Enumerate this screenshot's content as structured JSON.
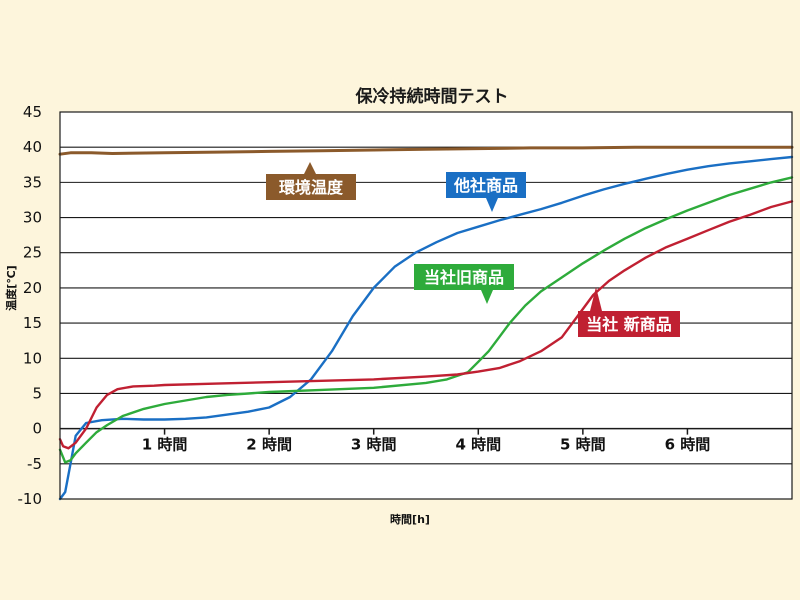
{
  "chart_data": {
    "type": "line",
    "title": "保冷持続時間テスト",
    "xlabel": "時間[h]",
    "ylabel": "温度[℃]",
    "xlim": [
      0,
      7
    ],
    "ylim": [
      -10,
      45
    ],
    "yticks": [
      45,
      40,
      35,
      30,
      25,
      20,
      15,
      10,
      5,
      0,
      -5,
      -10
    ],
    "xticks": [
      {
        "value": 1,
        "label": "1 時間"
      },
      {
        "value": 2,
        "label": "2 時間"
      },
      {
        "value": 3,
        "label": "3 時間"
      },
      {
        "value": 4,
        "label": "4 時間"
      },
      {
        "value": 5,
        "label": "5 時間"
      },
      {
        "value": 6,
        "label": "6 時間"
      }
    ],
    "grid": true,
    "series": [
      {
        "name": "環境温度",
        "color": "#8b5a2b",
        "points": [
          [
            0,
            39
          ],
          [
            0.1,
            39.2
          ],
          [
            0.3,
            39.2
          ],
          [
            0.5,
            39.1
          ],
          [
            1,
            39.2
          ],
          [
            1.5,
            39.3
          ],
          [
            2,
            39.4
          ],
          [
            2.5,
            39.5
          ],
          [
            3,
            39.6
          ],
          [
            3.5,
            39.7
          ],
          [
            4,
            39.8
          ],
          [
            4.5,
            39.9
          ],
          [
            5,
            39.9
          ],
          [
            5.5,
            40
          ],
          [
            6,
            40
          ],
          [
            6.5,
            40
          ],
          [
            7,
            40
          ]
        ]
      },
      {
        "name": "他社商品",
        "color": "#1a6fc4",
        "points": [
          [
            0,
            -10
          ],
          [
            0.05,
            -9
          ],
          [
            0.1,
            -5
          ],
          [
            0.15,
            -1
          ],
          [
            0.25,
            0.8
          ],
          [
            0.4,
            1.2
          ],
          [
            0.6,
            1.4
          ],
          [
            0.8,
            1.3
          ],
          [
            1,
            1.3
          ],
          [
            1.2,
            1.4
          ],
          [
            1.4,
            1.6
          ],
          [
            1.6,
            2
          ],
          [
            1.8,
            2.4
          ],
          [
            2,
            3
          ],
          [
            2.2,
            4.5
          ],
          [
            2.4,
            7
          ],
          [
            2.6,
            11
          ],
          [
            2.8,
            16
          ],
          [
            3,
            20
          ],
          [
            3.2,
            23
          ],
          [
            3.4,
            25
          ],
          [
            3.6,
            26.5
          ],
          [
            3.8,
            27.8
          ],
          [
            4,
            28.7
          ],
          [
            4.2,
            29.6
          ],
          [
            4.4,
            30.4
          ],
          [
            4.6,
            31.2
          ],
          [
            4.8,
            32.1
          ],
          [
            5,
            33.1
          ],
          [
            5.2,
            34
          ],
          [
            5.4,
            34.8
          ],
          [
            5.6,
            35.5
          ],
          [
            5.8,
            36.2
          ],
          [
            6,
            36.8
          ],
          [
            6.2,
            37.3
          ],
          [
            6.4,
            37.7
          ],
          [
            6.6,
            38
          ],
          [
            6.8,
            38.3
          ],
          [
            7,
            38.6
          ]
        ]
      },
      {
        "name": "当社旧商品",
        "color": "#2eab3b",
        "points": [
          [
            0,
            -3
          ],
          [
            0.05,
            -4.8
          ],
          [
            0.1,
            -4.5
          ],
          [
            0.15,
            -3.5
          ],
          [
            0.25,
            -2
          ],
          [
            0.35,
            -0.5
          ],
          [
            0.45,
            0.5
          ],
          [
            0.6,
            1.8
          ],
          [
            0.8,
            2.8
          ],
          [
            1,
            3.5
          ],
          [
            1.2,
            4
          ],
          [
            1.4,
            4.5
          ],
          [
            1.6,
            4.8
          ],
          [
            1.8,
            5
          ],
          [
            2,
            5.2
          ],
          [
            2.5,
            5.5
          ],
          [
            3,
            5.8
          ],
          [
            3.5,
            6.5
          ],
          [
            3.7,
            7
          ],
          [
            3.9,
            8
          ],
          [
            4,
            9.5
          ],
          [
            4.1,
            11
          ],
          [
            4.2,
            13
          ],
          [
            4.3,
            15
          ],
          [
            4.45,
            17.5
          ],
          [
            4.6,
            19.5
          ],
          [
            4.8,
            21.5
          ],
          [
            5,
            23.5
          ],
          [
            5.2,
            25.3
          ],
          [
            5.4,
            27
          ],
          [
            5.6,
            28.5
          ],
          [
            5.8,
            29.8
          ],
          [
            6,
            31
          ],
          [
            6.2,
            32.1
          ],
          [
            6.4,
            33.2
          ],
          [
            6.6,
            34.1
          ],
          [
            6.8,
            35
          ],
          [
            7,
            35.7
          ]
        ]
      },
      {
        "name": "当社 新商品",
        "color": "#c02032",
        "points": [
          [
            0,
            -1.5
          ],
          [
            0.03,
            -2.5
          ],
          [
            0.08,
            -2.8
          ],
          [
            0.15,
            -2
          ],
          [
            0.25,
            0
          ],
          [
            0.35,
            3
          ],
          [
            0.45,
            4.8
          ],
          [
            0.55,
            5.6
          ],
          [
            0.7,
            6
          ],
          [
            0.9,
            6.1
          ],
          [
            1,
            6.2
          ],
          [
            1.5,
            6.4
          ],
          [
            2,
            6.6
          ],
          [
            2.5,
            6.8
          ],
          [
            3,
            7
          ],
          [
            3.5,
            7.4
          ],
          [
            3.8,
            7.7
          ],
          [
            4,
            8.1
          ],
          [
            4.2,
            8.6
          ],
          [
            4.4,
            9.6
          ],
          [
            4.6,
            11
          ],
          [
            4.8,
            13
          ],
          [
            4.95,
            16
          ],
          [
            5.1,
            19
          ],
          [
            5.25,
            21
          ],
          [
            5.4,
            22.5
          ],
          [
            5.6,
            24.3
          ],
          [
            5.8,
            25.8
          ],
          [
            6,
            27
          ],
          [
            6.2,
            28.2
          ],
          [
            6.4,
            29.4
          ],
          [
            6.6,
            30.4
          ],
          [
            6.8,
            31.5
          ],
          [
            7,
            32.3
          ]
        ]
      }
    ],
    "annotations": [
      {
        "text": "環境温度",
        "color": "#8b5a2b"
      },
      {
        "text": "他社商品",
        "color": "#1a6fc4"
      },
      {
        "text": "当社旧商品",
        "color": "#2eab3b"
      },
      {
        "text": "当社 新商品",
        "color": "#c02032"
      }
    ]
  }
}
